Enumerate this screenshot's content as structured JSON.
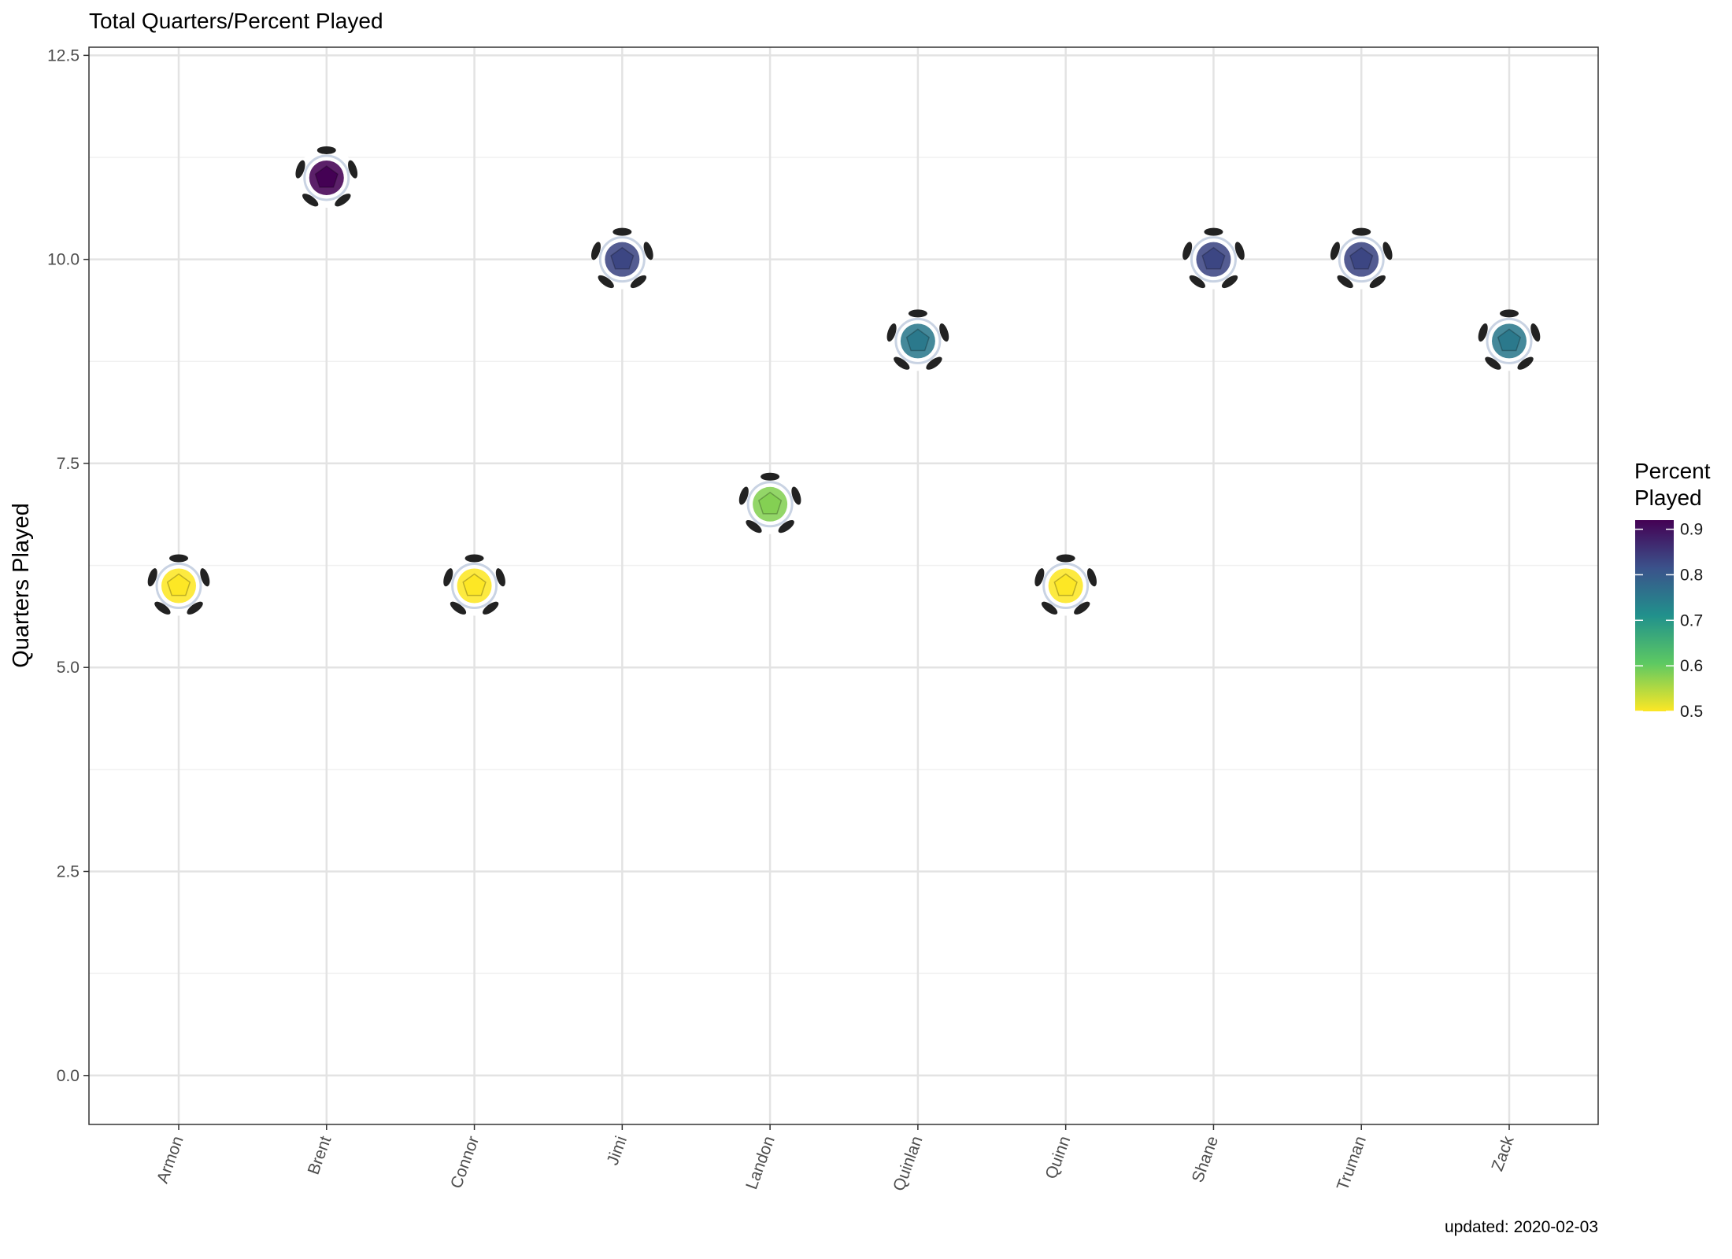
{
  "chart_data": {
    "type": "scatter",
    "title": "Total Quarters/Percent Played",
    "xlabel": "",
    "ylabel": "Quarters Played",
    "categories": [
      "Armon",
      "Brent",
      "Connor",
      "Jimi",
      "Landon",
      "Quinlan",
      "Quinn",
      "Shane",
      "Truman",
      "Zack"
    ],
    "values": [
      6,
      11,
      6,
      10,
      7,
      9,
      6,
      10,
      10,
      9
    ],
    "percent_played": [
      0.5,
      0.92,
      0.5,
      0.83,
      0.58,
      0.75,
      0.5,
      0.83,
      0.83,
      0.75
    ],
    "y_ticks": [
      "0.0",
      "2.5",
      "5.0",
      "7.5",
      "10.0",
      "12.5"
    ],
    "ylim": [
      -0.6,
      12.6
    ],
    "grid": true,
    "marker": "soccer-ball-icon",
    "legend": {
      "title_line1": "Percent",
      "title_line2": "Played",
      "position": "right",
      "ticks": [
        "0.9",
        "0.8",
        "0.7",
        "0.6",
        "0.5"
      ],
      "range": [
        0.5,
        0.92
      ],
      "colormap": "viridis"
    },
    "caption": "updated: 2020-02-03"
  }
}
